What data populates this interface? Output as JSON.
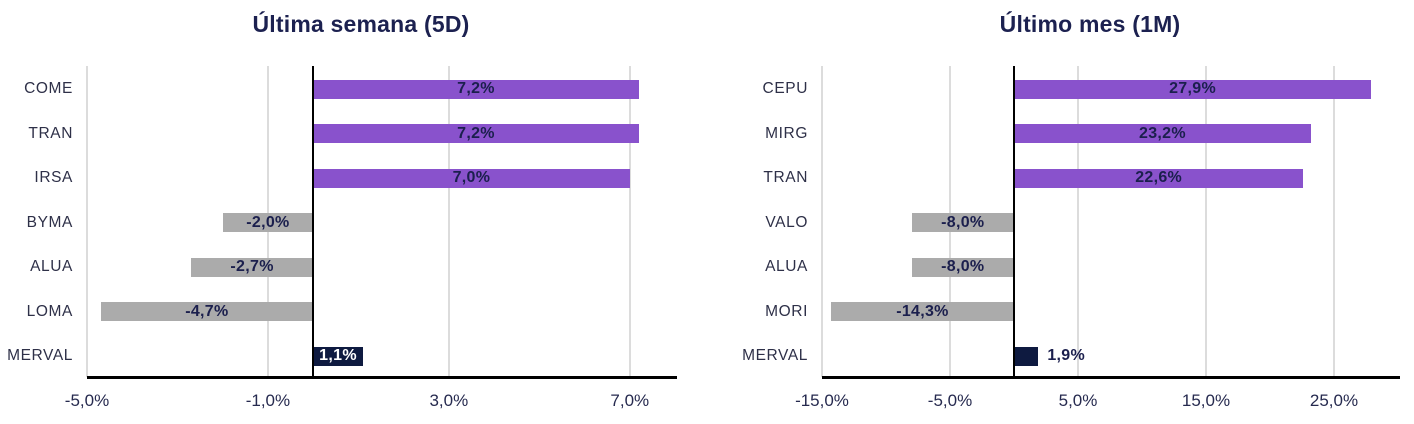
{
  "colors": {
    "purple": "#8952cc",
    "gray": "#ababab",
    "navy": "#0e1a40",
    "value_text": "#1b1f4d",
    "value_text_on_navy": "#ffffff",
    "tick_text": "#262a4f",
    "category_text": "#2e3048",
    "grid": "#dcdcdc",
    "axis": "#000000",
    "background": "#ffffff"
  },
  "chart_data": [
    {
      "type": "bar",
      "orientation": "horizontal",
      "title": "Última semana (5D)",
      "categories": [
        "COME",
        "TRAN",
        "IRSA",
        "BYMA",
        "ALUA",
        "LOMA",
        "MERVAL"
      ],
      "values": [
        7.2,
        7.2,
        7.0,
        -2.0,
        -2.7,
        -4.7,
        1.1
      ],
      "value_labels": [
        "7,2%",
        "7,2%",
        "7,0%",
        "-2,0%",
        "-2,7%",
        "-4,7%",
        "1,1%"
      ],
      "bar_colors": [
        "purple",
        "purple",
        "purple",
        "gray",
        "gray",
        "gray",
        "navy"
      ],
      "xlim": [
        -5,
        8
      ],
      "ticks": [
        -5,
        -1,
        3,
        7
      ],
      "tick_labels": [
        "-5,0%",
        "-1,0%",
        "3,0%",
        "7,0%"
      ],
      "grid": true,
      "zero_line": true,
      "legend": "none"
    },
    {
      "type": "bar",
      "orientation": "horizontal",
      "title": "Último mes (1M)",
      "categories": [
        "CEPU",
        "MIRG",
        "TRAN",
        "VALO",
        "ALUA",
        "MORI",
        "MERVAL"
      ],
      "values": [
        27.9,
        23.2,
        22.6,
        -8.0,
        -8.0,
        -14.3,
        1.9
      ],
      "value_labels": [
        "27,9%",
        "23,2%",
        "22,6%",
        "-8,0%",
        "-8,0%",
        "-14,3%",
        "1,9%"
      ],
      "bar_colors": [
        "purple",
        "purple",
        "purple",
        "gray",
        "gray",
        "gray",
        "navy"
      ],
      "xlim": [
        -15,
        30
      ],
      "ticks": [
        -15,
        -5,
        5,
        15,
        25
      ],
      "tick_labels": [
        "-15,0%",
        "-5,0%",
        "5,0%",
        "15,0%",
        "25,0%"
      ],
      "grid": true,
      "zero_line": true,
      "legend": "none"
    }
  ]
}
